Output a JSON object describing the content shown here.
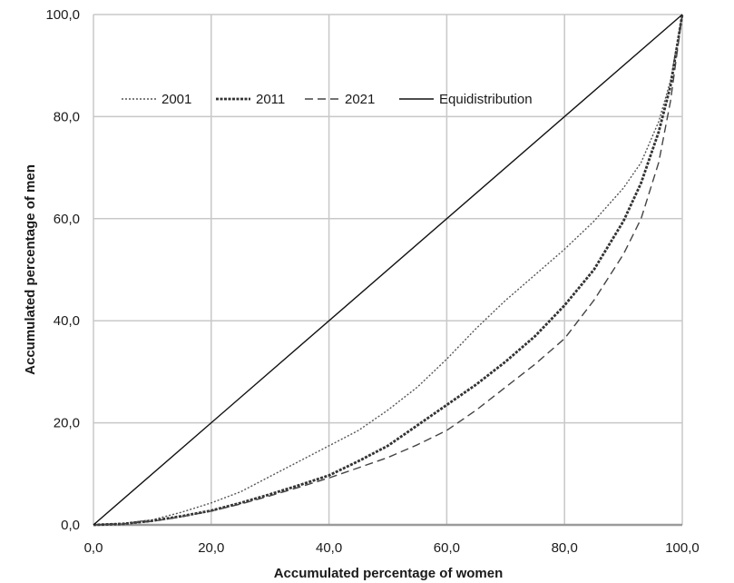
{
  "chart_data": {
    "type": "line",
    "xlabel": "Accumulated percentage of women",
    "ylabel": "Accumulated percentage of men",
    "xlim": [
      0,
      100
    ],
    "ylim": [
      0,
      100
    ],
    "x_ticks": [
      "0,0",
      "20,0",
      "40,0",
      "60,0",
      "80,0",
      "100,0"
    ],
    "y_ticks": [
      "0,0",
      "20,0",
      "40,0",
      "60,0",
      "80,0",
      "100,0"
    ],
    "grid": true,
    "legend_position": "top-left inside plot",
    "series": [
      {
        "name": "2001",
        "style": "dotted",
        "color": "#555555",
        "x": [
          0,
          5,
          10,
          15,
          20,
          25,
          30,
          35,
          40,
          45,
          50,
          55,
          60,
          65,
          70,
          75,
          80,
          85,
          90,
          93,
          96,
          98,
          100
        ],
        "y": [
          0,
          0.3,
          1,
          2.5,
          4.3,
          6.5,
          9.5,
          12.5,
          15.5,
          18.5,
          22.5,
          27,
          32.5,
          38.5,
          44,
          49,
          54,
          59.5,
          66,
          71,
          79,
          87,
          100
        ]
      },
      {
        "name": "2011",
        "style": "dense-dash",
        "color": "#333333",
        "x": [
          0,
          5,
          10,
          15,
          20,
          25,
          30,
          35,
          40,
          45,
          50,
          55,
          60,
          65,
          70,
          75,
          80,
          85,
          90,
          93,
          96,
          98,
          100
        ],
        "y": [
          0,
          0.2,
          0.8,
          1.7,
          2.8,
          4.3,
          6,
          7.8,
          9.7,
          12.5,
          15.5,
          19.5,
          23.5,
          27.5,
          32,
          37,
          43,
          50,
          59.5,
          67,
          77,
          86,
          100
        ]
      },
      {
        "name": "2021",
        "style": "dashed",
        "color": "#444444",
        "x": [
          0,
          5,
          10,
          15,
          20,
          25,
          30,
          35,
          40,
          45,
          50,
          55,
          60,
          65,
          70,
          75,
          80,
          85,
          90,
          93,
          96,
          98,
          100
        ],
        "y": [
          0,
          0.2,
          0.7,
          1.6,
          2.7,
          4.1,
          5.7,
          7.4,
          9.2,
          11.2,
          13.2,
          15.7,
          18.5,
          22.5,
          27,
          31.5,
          36.5,
          44,
          53,
          60,
          71,
          83,
          100
        ]
      },
      {
        "name": "Equidistribution",
        "style": "solid",
        "color": "#111111",
        "x": [
          0,
          100
        ],
        "y": [
          0,
          100
        ]
      }
    ]
  }
}
